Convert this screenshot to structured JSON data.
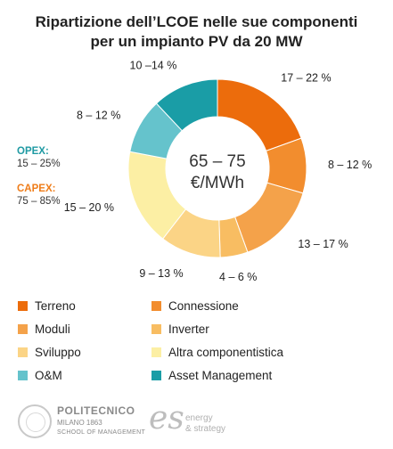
{
  "title_lines": [
    "Ripartizione dell’LCOE nelle sue componenti",
    "per un impianto PV da 20 MW"
  ],
  "center_text": [
    "65 – 75",
    "€/MWh"
  ],
  "side_labels": [
    {
      "name": "OPEX:",
      "range": "15 – 25%",
      "color": "#1f9aa3"
    },
    {
      "name": "CAPEX:",
      "range": "75 – 85%",
      "color": "#ef7d1a"
    }
  ],
  "chart_data": {
    "type": "pie",
    "variant": "donut",
    "title": "Ripartizione dell’LCOE nelle sue componenti per un impianto PV da 20 MW",
    "center_label": "65 – 75 €/MWh",
    "slices": [
      {
        "name": "Terreno",
        "label": "17 – 22 %",
        "range": [
          17,
          22
        ],
        "color": "#ec6c0c"
      },
      {
        "name": "Connessione",
        "label": "8 – 12 %",
        "range": [
          8,
          12
        ],
        "color": "#f28d2e"
      },
      {
        "name": "Moduli",
        "label": "13 – 17 %",
        "range": [
          13,
          17
        ],
        "color": "#f4a24a"
      },
      {
        "name": "Inverter",
        "label": "4 – 6 %",
        "range": [
          4,
          6
        ],
        "color": "#f8bd62"
      },
      {
        "name": "Sviluppo",
        "label": "9 – 13 %",
        "range": [
          9,
          13
        ],
        "color": "#fbd486"
      },
      {
        "name": "Altra componentistica",
        "label": "15 – 20 %",
        "range": [
          15,
          20
        ],
        "color": "#fcefa4"
      },
      {
        "name": "O&M",
        "label": "8 – 12 %",
        "range": [
          8,
          12
        ],
        "color": "#65c3cc"
      },
      {
        "name": "Asset Management",
        "label": "10 –14 %",
        "range": [
          10,
          14
        ],
        "color": "#1a9da6"
      }
    ]
  },
  "footer": {
    "poli_name": "POLITECNICO",
    "poli_city": "MILANO 1863",
    "poli_school": "SCHOOL OF MANAGEMENT",
    "es_mark": "es",
    "es_line1": "energy",
    "es_line2": "& strategy"
  }
}
